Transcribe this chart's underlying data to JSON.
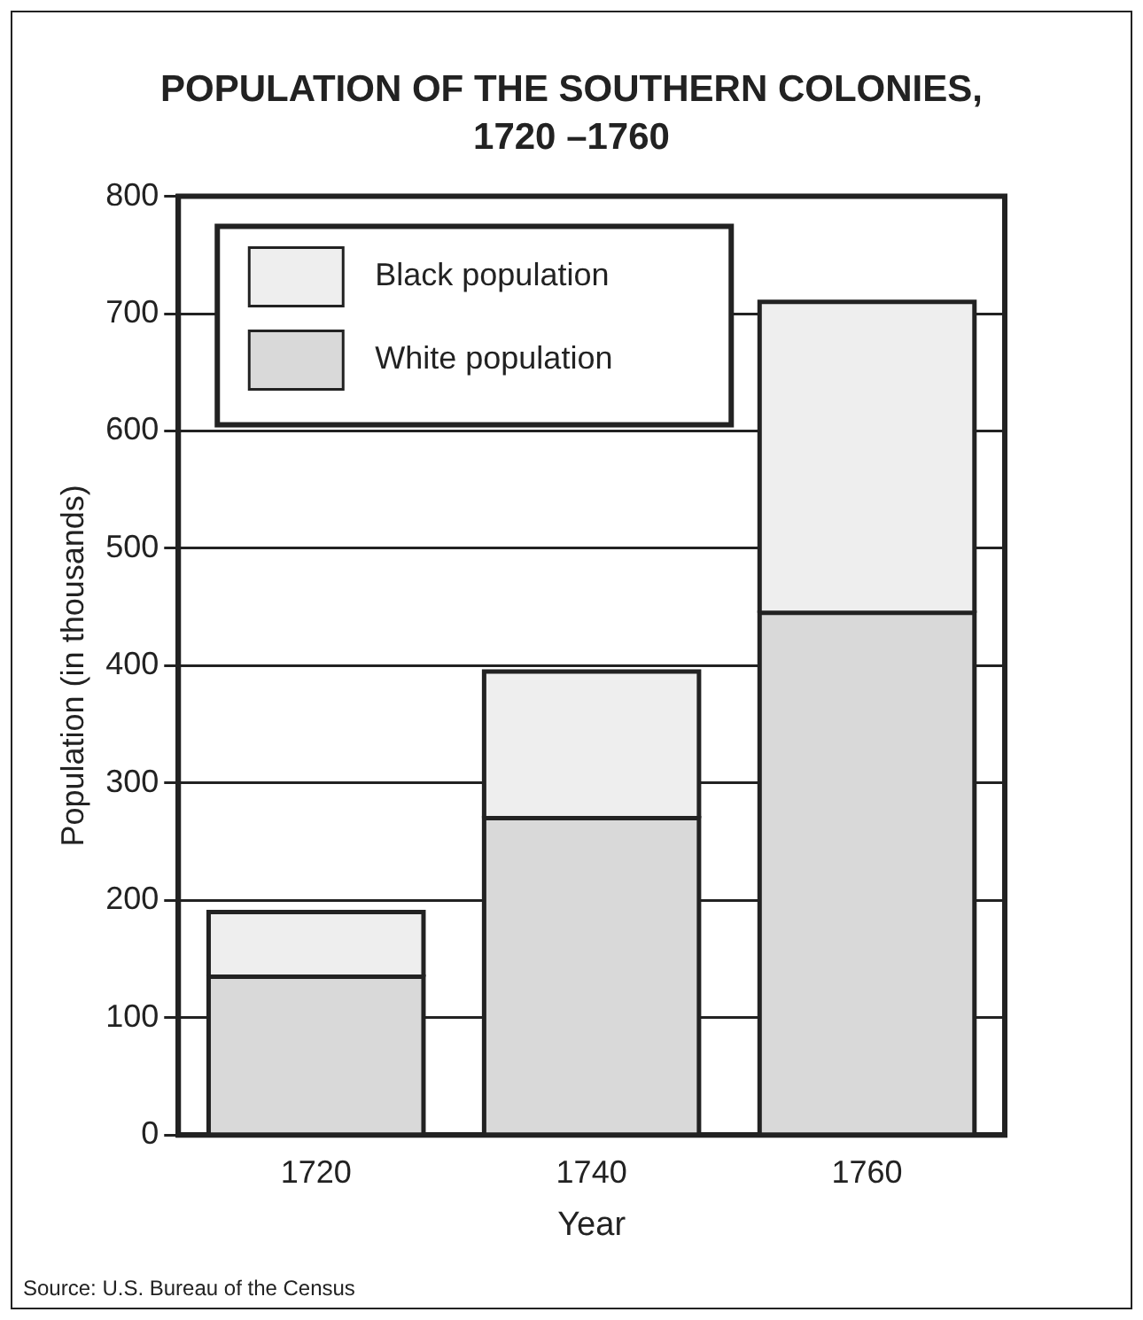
{
  "chart_data": {
    "type": "bar",
    "title": "POPULATION OF THE SOUTHERN COLONIES,\n1720 –1760",
    "xlabel": "Year",
    "ylabel": "Population (in thousands)",
    "categories": [
      "1720",
      "1740",
      "1760"
    ],
    "stacked": true,
    "series": [
      {
        "name": "White population",
        "color": "#d9d9d9",
        "values": [
          135,
          270,
          445
        ]
      },
      {
        "name": "Black population",
        "color": "#eeeeee",
        "values": [
          55,
          125,
          265
        ]
      }
    ],
    "ylim": [
      0,
      800
    ],
    "yticks": [
      0,
      100,
      200,
      300,
      400,
      500,
      600,
      700,
      800
    ],
    "grid": "y",
    "legend": "top left",
    "annotations": [
      "Source: U.S. Bureau of the Census"
    ]
  }
}
